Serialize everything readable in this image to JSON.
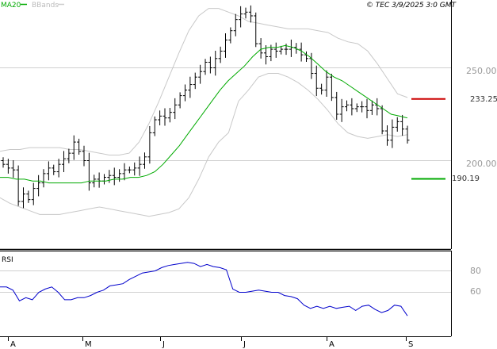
{
  "header": {
    "ma_label": "MA20",
    "bbands_label": "BBands",
    "copyright": "© TEC 3/9/2025 3:0 GMT"
  },
  "colors": {
    "ma": "#00aa00",
    "bbands": "#c8c8c8",
    "candle": "#000000",
    "rsi": "#0000cc",
    "resistance": "#cc0000",
    "support": "#00aa00",
    "frame": "#000000",
    "grid": "#d0d0d0"
  },
  "chart_data": [
    {
      "type": "line",
      "subtype": "ohlc-bars",
      "title": "",
      "y_ticks": [
        "250.00",
        "200.00"
      ],
      "ylim": [
        170,
        288
      ],
      "x_tick_labels": [
        "A",
        "M",
        "J",
        "J",
        "A",
        "S"
      ],
      "price_levels": [
        {
          "label": "233.25",
          "value": 233.25,
          "color": "#cc0000"
        },
        {
          "label": "190.19",
          "value": 190.19,
          "color": "#00aa00"
        }
      ],
      "close": [
        198,
        196,
        195,
        178,
        182,
        179,
        185,
        188,
        193,
        196,
        194,
        198,
        201,
        204,
        210,
        205,
        200,
        188,
        190,
        189,
        191,
        192,
        191,
        193,
        195,
        195,
        196,
        198,
        202,
        215,
        222,
        224,
        223,
        226,
        230,
        235,
        238,
        241,
        245,
        248,
        253,
        250,
        255,
        259,
        265,
        270,
        276,
        279,
        280,
        278,
        263,
        258,
        256,
        260,
        259,
        260,
        260,
        261,
        260,
        257,
        255,
        247,
        239,
        238,
        245,
        234,
        225,
        229,
        230,
        228,
        229,
        229,
        227,
        230,
        228,
        216,
        211,
        218,
        221,
        217,
        211
      ],
      "series": [
        {
          "name": "MA20",
          "values": [
            191,
            191,
            190,
            190,
            189,
            189,
            188,
            188,
            188,
            188,
            188,
            189,
            189,
            189,
            190,
            190,
            191,
            191,
            192,
            194,
            198,
            203,
            208,
            214,
            220,
            226,
            232,
            238,
            243,
            247,
            251,
            256,
            260,
            261,
            261,
            262,
            261,
            259,
            256,
            252,
            248,
            245,
            243,
            240,
            237,
            234,
            231,
            228,
            225,
            224,
            223
          ]
        },
        {
          "name": "BBands upper",
          "values": [
            205,
            206,
            206,
            207,
            207,
            207,
            207,
            206,
            206,
            205,
            204,
            203,
            203,
            204,
            210,
            220,
            232,
            245,
            258,
            270,
            278,
            282,
            282,
            280,
            278,
            275,
            274,
            273,
            272,
            271,
            271,
            271,
            270,
            269,
            266,
            264,
            263,
            259,
            252,
            244,
            236,
            234
          ]
        },
        {
          "name": "BBands lower",
          "values": [
            180,
            177,
            175,
            173,
            171,
            171,
            171,
            172,
            173,
            174,
            175,
            174,
            173,
            172,
            171,
            170,
            171,
            172,
            174,
            180,
            190,
            202,
            210,
            215,
            232,
            238,
            245,
            247,
            247,
            245,
            242,
            238,
            233,
            227,
            220,
            215,
            213,
            212,
            213,
            214,
            213,
            214
          ]
        }
      ]
    },
    {
      "type": "line",
      "title": "RSI",
      "y_ticks": [
        "80",
        "60"
      ],
      "ylim": [
        35,
        96
      ],
      "series": [
        {
          "name": "RSI",
          "values": [
            65,
            65,
            62,
            52,
            55,
            53,
            60,
            63,
            65,
            60,
            53,
            53,
            55,
            55,
            57,
            60,
            62,
            66,
            67,
            68,
            72,
            75,
            78,
            79,
            80,
            83,
            85,
            86,
            87,
            88,
            87,
            84,
            86,
            84,
            83,
            81,
            63,
            60,
            60,
            61,
            62,
            61,
            60,
            60,
            57,
            56,
            54,
            48,
            45,
            47,
            45,
            47,
            45,
            46,
            47,
            43,
            47,
            48,
            44,
            41,
            43,
            48,
            47,
            38
          ]
        }
      ]
    }
  ]
}
